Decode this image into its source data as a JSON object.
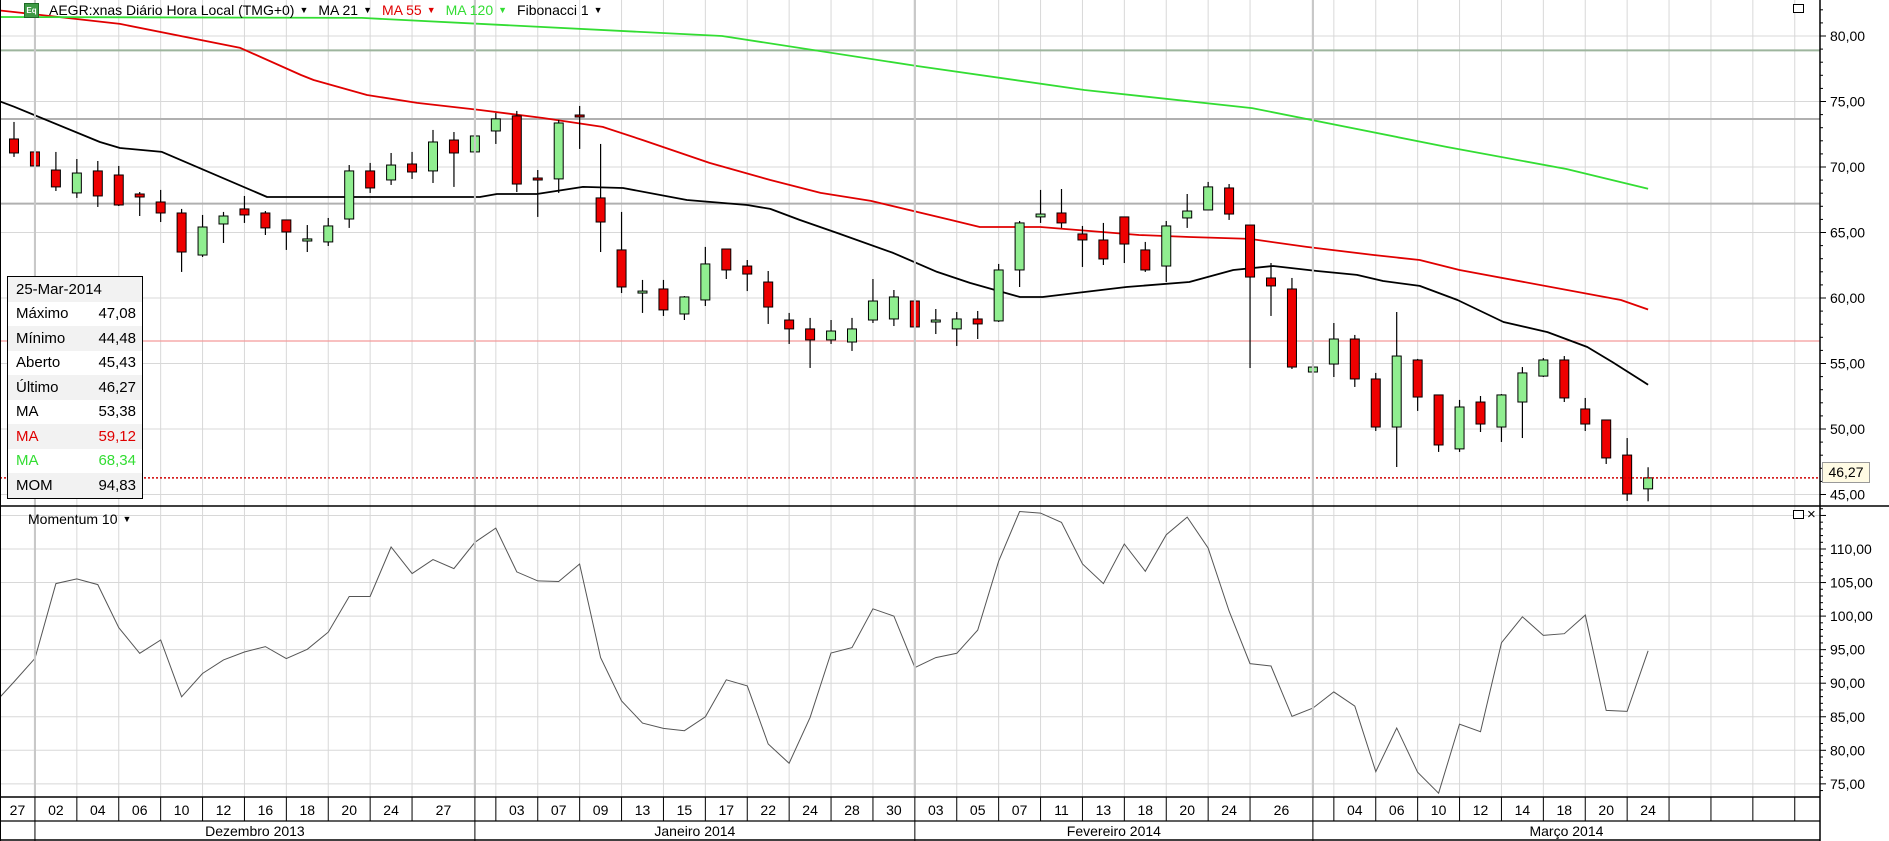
{
  "header": {
    "symbol_icon": "Eq",
    "title": "AEGR:xnas Diário Hora Local (TMG+0)",
    "indicators": [
      {
        "label": "MA 21",
        "color": "#000000"
      },
      {
        "label": "MA 55",
        "color": "#e00000"
      },
      {
        "label": "MA 120",
        "color": "#33dd33"
      },
      {
        "label": "Fibonacci 1",
        "color": "#000000"
      }
    ]
  },
  "info_box": {
    "date": "25-Mar-2014",
    "rows": [
      {
        "label": "Máximo",
        "value": "47,08",
        "color": "#000000"
      },
      {
        "label": "Mínimo",
        "value": "44,48",
        "color": "#000000"
      },
      {
        "label": "Aberto",
        "value": "45,43",
        "color": "#000000"
      },
      {
        "label": "Último",
        "value": "46,27",
        "color": "#000000"
      },
      {
        "label": "MA",
        "value": "53,38",
        "color": "#000000"
      },
      {
        "label": "MA",
        "value": "59,12",
        "color": "#e00000"
      },
      {
        "label": "MA",
        "value": "68,34",
        "color": "#33dd33"
      },
      {
        "label": "MOM",
        "value": "94,83",
        "color": "#000000"
      }
    ]
  },
  "momentum_pane": {
    "title": "Momentum 10"
  },
  "last_price_label": "46,27",
  "chart_data": {
    "type": "candlestick",
    "price": {
      "y_range": [
        44.3,
        82.75
      ],
      "y_ticks": [
        "80,00",
        "75,00",
        "70,00",
        "65,00",
        "60,00",
        "55,00",
        "50,00",
        "45,00"
      ],
      "y_tick_values": [
        80,
        75,
        70,
        65,
        60,
        55,
        50,
        45
      ],
      "last_price": 46.27,
      "up_color": "#90ee90",
      "down_color": "#ee0000",
      "candles_ohlc": [
        [
          72.14,
          73.44,
          70.77,
          71.07
        ],
        [
          71.15,
          72.06,
          69.62,
          70.08
        ],
        [
          69.77,
          71.15,
          68.17,
          68.48
        ],
        [
          68.02,
          70.61,
          67.64,
          69.54
        ],
        [
          69.7,
          70.46,
          66.95,
          67.79
        ],
        [
          69.39,
          70.08,
          67.02,
          67.1
        ],
        [
          67.94,
          68.09,
          66.26,
          67.71
        ],
        [
          67.33,
          68.25,
          65.8,
          66.49
        ],
        [
          66.49,
          66.8,
          61.99,
          63.51
        ],
        [
          63.28,
          66.34,
          63.13,
          65.42
        ],
        [
          65.65,
          66.57,
          64.2,
          66.26
        ],
        [
          66.8,
          67.79,
          65.73,
          66.34
        ],
        [
          66.49,
          66.64,
          64.81,
          65.35
        ],
        [
          65.96,
          65.96,
          63.67,
          65.04
        ],
        [
          64.35,
          65.57,
          63.51,
          64.51
        ],
        [
          64.28,
          66.11,
          63.97,
          65.5
        ],
        [
          66.03,
          70.15,
          65.35,
          69.7
        ],
        [
          69.7,
          70.31,
          68.02,
          68.4
        ],
        [
          69.01,
          71.07,
          68.63,
          70.15
        ],
        [
          70.23,
          71.15,
          69.09,
          69.62
        ],
        [
          69.7,
          72.83,
          68.78,
          71.91
        ],
        [
          72.06,
          72.67,
          68.48,
          71.07
        ],
        [
          71.15,
          72.83,
          69.85,
          72.37
        ],
        [
          72.75,
          74.12,
          71.76,
          73.67
        ],
        [
          73.9,
          74.28,
          68.09,
          68.7
        ],
        [
          69.16,
          69.77,
          66.19,
          69.01
        ],
        [
          69.09,
          73.59,
          68.02,
          73.36
        ],
        [
          73.97,
          74.66,
          71.38,
          73.82
        ],
        [
          67.64,
          71.76,
          63.51,
          65.8
        ],
        [
          63.67,
          66.57,
          60.38,
          60.84
        ],
        [
          60.38,
          61.38,
          58.86,
          60.53
        ],
        [
          60.69,
          61.38,
          58.63,
          59.09
        ],
        [
          58.78,
          60.15,
          58.32,
          60.08
        ],
        [
          59.85,
          63.9,
          59.39,
          62.6
        ],
        [
          63.74,
          63.74,
          61.45,
          62.14
        ],
        [
          62.44,
          62.9,
          60.53,
          61.83
        ],
        [
          61.22,
          62.06,
          58.02,
          59.31
        ],
        [
          58.32,
          58.86,
          56.49,
          57.64
        ],
        [
          57.64,
          58.48,
          54.66,
          56.8
        ],
        [
          56.8,
          58.32,
          56.49,
          57.48
        ],
        [
          56.64,
          58.48,
          55.96,
          57.64
        ],
        [
          58.32,
          61.45,
          58.09,
          59.77
        ],
        [
          58.4,
          60.61,
          57.86,
          60.08
        ],
        [
          59.77,
          60.0,
          57.1,
          57.79
        ],
        [
          58.17,
          59.16,
          57.25,
          58.32
        ],
        [
          57.64,
          58.93,
          56.34,
          58.4
        ],
        [
          58.4,
          59.01,
          56.87,
          58.02
        ],
        [
          58.25,
          62.6,
          58.17,
          62.14
        ],
        [
          62.14,
          65.88,
          60.84,
          65.73
        ],
        [
          66.19,
          68.25,
          65.73,
          66.41
        ],
        [
          66.49,
          68.32,
          65.35,
          65.73
        ],
        [
          64.89,
          65.5,
          62.37,
          64.43
        ],
        [
          64.43,
          65.73,
          62.52,
          62.98
        ],
        [
          66.19,
          66.19,
          62.67,
          64.12
        ],
        [
          63.67,
          64.28,
          61.99,
          62.14
        ],
        [
          62.44,
          65.88,
          61.22,
          65.5
        ],
        [
          66.11,
          67.94,
          65.35,
          66.64
        ],
        [
          66.72,
          68.86,
          66.72,
          68.48
        ],
        [
          68.4,
          68.7,
          65.96,
          66.41
        ],
        [
          65.57,
          65.57,
          54.66,
          61.6
        ],
        [
          61.53,
          62.67,
          58.63,
          60.92
        ],
        [
          60.69,
          61.53,
          54.58,
          54.73
        ],
        [
          54.35,
          56.03,
          51.99,
          54.73
        ],
        [
          54.96,
          58.09,
          53.97,
          56.87
        ],
        [
          56.87,
          57.18,
          53.21,
          53.82
        ],
        [
          53.82,
          54.28,
          49.85,
          50.15
        ],
        [
          50.15,
          58.93,
          47.1,
          55.57
        ],
        [
          55.27,
          55.35,
          51.38,
          52.44
        ],
        [
          52.6,
          52.6,
          48.25,
          48.78
        ],
        [
          48.48,
          52.22,
          48.25,
          51.68
        ],
        [
          52.06,
          52.52,
          49.77,
          50.38
        ],
        [
          50.15,
          52.67,
          49.01,
          52.6
        ],
        [
          52.06,
          54.73,
          49.31,
          54.28
        ],
        [
          54.04,
          55.42,
          53.97,
          55.27
        ],
        [
          55.27,
          55.57,
          52.06,
          52.37
        ],
        [
          51.53,
          52.37,
          49.85,
          50.38
        ],
        [
          50.69,
          50.69,
          47.33,
          47.79
        ],
        [
          48.01,
          49.31,
          44.51,
          45.04
        ],
        [
          45.43,
          47.08,
          44.48,
          46.27
        ]
      ],
      "moving_averages": [
        {
          "name": "MA 21",
          "color": "#000000",
          "points": [
            [
              -1,
              75.2
            ],
            [
              0,
              74.6
            ],
            [
              4.1,
              71.91
            ],
            [
              5.06,
              71.45
            ],
            [
              7.06,
              71.15
            ],
            [
              12.08,
              67.71
            ],
            [
              22.24,
              67.71
            ],
            [
              23.05,
              67.94
            ],
            [
              24.96,
              67.94
            ],
            [
              27.16,
              68.48
            ],
            [
              29.07,
              68.4
            ],
            [
              32.12,
              67.48
            ],
            [
              35,
              67.1
            ],
            [
              36.1,
              66.8
            ],
            [
              37.5,
              65.96
            ],
            [
              39.3,
              64.96
            ],
            [
              41.96,
              63.44
            ],
            [
              44.06,
              61.99
            ],
            [
              45.63,
              61.15
            ],
            [
              48.02,
              60.08
            ],
            [
              49.1,
              60.08
            ],
            [
              53.1,
              60.84
            ],
            [
              56.1,
              61.22
            ],
            [
              58.2,
              62.14
            ],
            [
              60.1,
              62.44
            ],
            [
              62.2,
              62.06
            ],
            [
              64.1,
              61.76
            ],
            [
              65.35,
              61.3
            ],
            [
              67.1,
              60.92
            ],
            [
              68.9,
              59.85
            ],
            [
              71.1,
              58.17
            ],
            [
              73.2,
              57.4
            ],
            [
              75.1,
              56.26
            ],
            [
              76.3,
              55.11
            ],
            [
              78,
              53.38
            ]
          ]
        },
        {
          "name": "MA 55",
          "color": "#e00000",
          "points": [
            [
              -1,
              82.0
            ],
            [
              0,
              81.83
            ],
            [
              5.06,
              80.92
            ],
            [
              10.8,
              79.09
            ],
            [
              13.7,
              77.02
            ],
            [
              14.3,
              76.64
            ],
            [
              16.85,
              75.5
            ],
            [
              19.24,
              74.89
            ],
            [
              22.24,
              74.35
            ],
            [
              25.25,
              73.74
            ],
            [
              28.1,
              73.06
            ],
            [
              30,
              72.06
            ],
            [
              33.2,
              70.31
            ],
            [
              36.1,
              69.01
            ],
            [
              38.5,
              68.02
            ],
            [
              40.9,
              67.41
            ],
            [
              44.7,
              65.96
            ],
            [
              46.1,
              65.42
            ],
            [
              49,
              65.42
            ],
            [
              53.7,
              64.81
            ],
            [
              56.1,
              64.66
            ],
            [
              59,
              64.51
            ],
            [
              61.7,
              63.9
            ],
            [
              64.9,
              63.28
            ],
            [
              67.1,
              62.9
            ],
            [
              69,
              62.14
            ],
            [
              76.7,
              59.85
            ],
            [
              78,
              59.12
            ]
          ]
        },
        {
          "name": "MA 120",
          "color": "#33dd33",
          "points": [
            [
              -1,
              81.45
            ],
            [
              16.6,
              81.38
            ],
            [
              33.8,
              80.0
            ],
            [
              43.1,
              77.71
            ],
            [
              51.1,
              75.88
            ],
            [
              59.1,
              74.5
            ],
            [
              68.4,
              71.53
            ],
            [
              74.1,
              69.85
            ],
            [
              78,
              68.34
            ]
          ]
        }
      ],
      "fib_levels": [
        {
          "value": 78.9,
          "color": "#9db59d"
        },
        {
          "value": 73.66,
          "color": "#b0b0b0"
        },
        {
          "value": 67.2,
          "color": "#b0b0b0"
        },
        {
          "value": 56.72,
          "color": "#f49a9a"
        }
      ]
    },
    "momentum": {
      "name": "Momentum 10",
      "y_ticks": [
        "110,00",
        "105,00",
        "100,00",
        "95,00",
        "90,00",
        "85,00",
        "80,00",
        "75,00"
      ],
      "y_tick_values": [
        110,
        105,
        100,
        95,
        90,
        85,
        80,
        75
      ],
      "start_index": -1,
      "values": [
        86.8,
        90.2,
        93.71,
        104.85,
        105.54,
        104.7,
        98.27,
        94.45,
        96.44,
        87.97,
        91.44,
        93.47,
        94.65,
        95.45,
        93.66,
        95.05,
        97.62,
        102.92,
        102.92,
        110.3,
        106.34,
        108.42,
        107.08,
        111.0,
        113.12,
        106.58,
        105.25,
        105.15,
        107.77,
        93.81,
        87.38,
        84.06,
        83.27,
        82.92,
        85.0,
        90.5,
        89.6,
        80.94,
        78.07,
        84.9,
        94.5,
        95.3,
        101.09,
        100.0,
        92.33,
        93.81,
        94.45,
        97.92,
        108.17,
        115.59,
        115.35,
        113.96,
        107.77,
        104.85,
        110.74,
        106.68,
        112.13,
        114.75,
        110.15,
        100.74,
        92.92,
        92.57,
        85.05,
        86.29,
        88.71,
        86.58,
        76.83,
        83.32,
        76.73,
        73.61,
        83.91,
        82.77,
        96.04,
        99.9,
        97.13,
        97.38,
        100.15,
        85.94,
        85.79,
        94.83
      ]
    },
    "x_axis": {
      "first_cell_start_index": -1,
      "date_cells": [
        [
          "27",
          2
        ],
        [
          "02",
          2
        ],
        [
          "04",
          2
        ],
        [
          "06",
          2
        ],
        [
          "10",
          2
        ],
        [
          "12",
          2
        ],
        [
          "16",
          2
        ],
        [
          "18",
          2
        ],
        [
          "20",
          2
        ],
        [
          "24",
          2
        ],
        [
          "27",
          3
        ],
        [
          "",
          1
        ],
        [
          "03",
          2
        ],
        [
          "07",
          2
        ],
        [
          "09",
          2
        ],
        [
          "13",
          2
        ],
        [
          "15",
          2
        ],
        [
          "17",
          2
        ],
        [
          "22",
          2
        ],
        [
          "24",
          2
        ],
        [
          "28",
          2
        ],
        [
          "30",
          2
        ],
        [
          "03",
          2
        ],
        [
          "05",
          2
        ],
        [
          "07",
          2
        ],
        [
          "11",
          2
        ],
        [
          "13",
          2
        ],
        [
          "18",
          2
        ],
        [
          "20",
          2
        ],
        [
          "24",
          2
        ],
        [
          "26",
          3
        ],
        [
          "",
          1
        ],
        [
          "04",
          2
        ],
        [
          "06",
          2
        ],
        [
          "10",
          2
        ],
        [
          "12",
          2
        ],
        [
          "14",
          2
        ],
        [
          "18",
          2
        ],
        [
          "20",
          2
        ],
        [
          "24",
          2
        ],
        [
          "",
          2
        ],
        [
          "",
          2
        ],
        [
          "",
          2
        ],
        [
          "",
          2
        ]
      ],
      "month_cells": [
        [
          "",
          2
        ],
        [
          "Dezembro 2013",
          21
        ],
        [
          "Janeiro 2014",
          21
        ],
        [
          "Fevereiro 2014",
          19
        ],
        [
          "Março 2014",
          26
        ]
      ]
    }
  }
}
